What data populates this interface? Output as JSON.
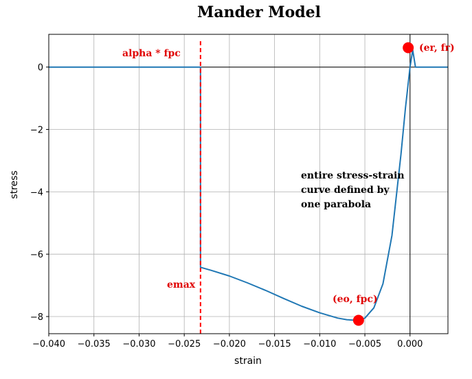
{
  "chart_data": {
    "type": "line",
    "title": "Mander Model",
    "xlabel": "strain",
    "ylabel": "stress",
    "xlim": [
      -0.04,
      0.0042
    ],
    "ylim": [
      -8.55,
      1.05
    ],
    "grid": true,
    "xticks": [
      -0.04,
      -0.035,
      -0.03,
      -0.025,
      -0.02,
      -0.015,
      -0.01,
      -0.005,
      0.0
    ],
    "xtick_labels": [
      "−0.040",
      "−0.035",
      "−0.030",
      "−0.025",
      "−0.020",
      "−0.015",
      "−0.010",
      "−0.005",
      "0.000"
    ],
    "yticks": [
      0,
      -2,
      -4,
      -6,
      -8
    ],
    "ytick_labels": [
      "0",
      "−2",
      "−4",
      "−6",
      "−8"
    ],
    "colors": {
      "curve": "#1f77b4",
      "marker": "#ff0000",
      "annotation": "#e00000",
      "axis_lines": "#000000"
    },
    "series": [
      {
        "x": [
          -0.042,
          -0.0232,
          -0.0232,
          -0.022,
          -0.02,
          -0.018,
          -0.016,
          -0.014,
          -0.012,
          -0.01,
          -0.008,
          -0.007,
          -0.006,
          -0.0057,
          -0.005,
          -0.004,
          -0.003,
          -0.002,
          -0.001,
          -0.0005,
          0.0,
          0.0003,
          0.0006,
          0.0042
        ],
        "y": [
          0,
          0,
          -6.42,
          -6.52,
          -6.7,
          -6.92,
          -7.16,
          -7.42,
          -7.67,
          -7.88,
          -8.05,
          -8.1,
          -8.12,
          -8.12,
          -8.05,
          -7.72,
          -6.95,
          -5.4,
          -2.8,
          -1.3,
          0.0,
          0.55,
          0,
          0
        ]
      }
    ],
    "vline": {
      "x": -0.0232,
      "style": "dashed",
      "color": "#ff0000"
    },
    "points": [
      {
        "label": "(eo, fpc)",
        "x": -0.0057,
        "y": -8.12
      },
      {
        "label": "(er, fr)",
        "x": -0.0002,
        "y": 0.62
      }
    ],
    "annotations": {
      "alpha_fpc": "alpha * fpc",
      "emax": "emax",
      "note_lines": [
        "entire stress-strain",
        "curve defined by",
        "one parabola"
      ]
    }
  }
}
